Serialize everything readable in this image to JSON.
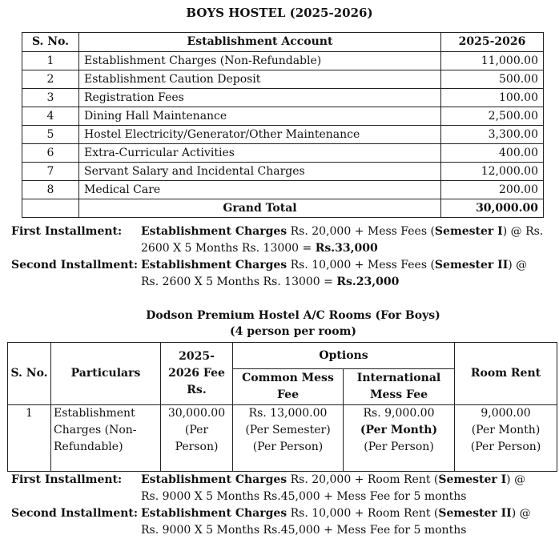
{
  "title": "BOYS HOSTEL (2025-2026)",
  "table1": {
    "header": [
      "S. No.",
      "Establishment Account",
      "2025-2026"
    ],
    "rows": [
      [
        "1",
        "Establishment Charges (Non-Refundable)",
        "11,000.00"
      ],
      [
        "2",
        "Establishment Caution Deposit",
        "500.00"
      ],
      [
        "3",
        "Registration Fees",
        "100.00"
      ],
      [
        "4",
        "Dining Hall Maintenance",
        "2,500.00"
      ],
      [
        "5",
        "Hostel Electricity/Generator/Other Maintenance",
        "3,300.00"
      ],
      [
        "6",
        "Extra-Curricular Activities",
        "400.00"
      ],
      [
        "7",
        "Servant Salary and Incidental Charges",
        "12,000.00"
      ],
      [
        "8",
        "Medical Care",
        "200.00"
      ]
    ],
    "total": [
      "Grand Total",
      "30,000.00"
    ]
  },
  "installments1": [
    {
      "label": "First Installment:",
      "runs": [
        "Establishment Charges",
        " Rs. 20,000 + Mess Fees (",
        "Semester I",
        ") @ Rs. 2600 X 5 Months Rs. 13000 = ",
        "Rs.33,000"
      ]
    },
    {
      "label": "Second Installment:",
      "runs": [
        "Establishment Charges",
        " Rs. 10,000 + Mess Fees (",
        "Semester II",
        ") @ Rs. 2600 X 5 Months Rs. 13000 = ",
        "Rs.23,000"
      ]
    }
  ],
  "subtitle": [
    "Dodson Premium Hostel A/C Rooms (For Boys)",
    "(4 person per room)"
  ],
  "table2": {
    "header": [
      "S. No.",
      "Particulars",
      "2025-2026 Fee Rs.",
      "Options",
      "Room Rent"
    ],
    "options": [
      "Common Mess Fee",
      "International Mess Fee"
    ],
    "row": {
      "sno": "1",
      "particulars": "Establishment Charges (Non-Refundable)",
      "fee": [
        "30,000.00",
        "(Per Person)"
      ],
      "common": [
        "Rs. 13,000.00",
        "(Per Semester)",
        "(Per Person)"
      ],
      "international": [
        "Rs. 9,000.00",
        "(Per Month)",
        "(Per Person)"
      ],
      "rent": [
        "9,000.00",
        "(Per Month)",
        "(Per Person)"
      ]
    }
  },
  "installments2": [
    {
      "label": "First Installment:",
      "runs": [
        "Establishment Charges",
        " Rs. 20,000 + Room Rent (",
        "Semester I",
        ") @ Rs. 9000 X 5 Months Rs.45,000 + Mess Fee for 5 months"
      ]
    },
    {
      "label": "Second Installment:",
      "runs": [
        "Establishment Charges",
        " Rs. 10,000 + Room Rent (",
        "Semester II",
        ") @ Rs. 9000 X 5 Months Rs.45,000 + Mess Fee for 5 months"
      ]
    }
  ]
}
